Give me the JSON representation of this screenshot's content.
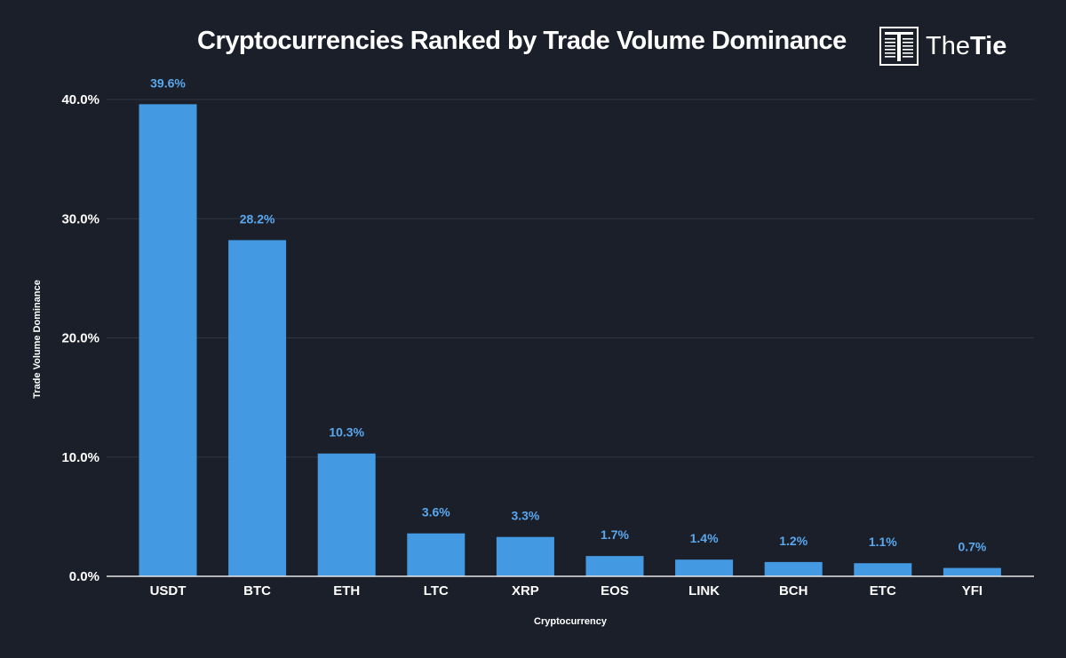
{
  "header": {
    "title": "Cryptocurrencies Ranked by Trade Volume Dominance",
    "brand_name_light": "The",
    "brand_name_bold": "Tie"
  },
  "colors": {
    "background": "#1b1f2a",
    "bar": "#4499e3",
    "data_label": "#5aa8ee",
    "gridline": "#2f3545",
    "axis_line": "#e6e6e6"
  },
  "chart_data": {
    "type": "bar",
    "title": "Cryptocurrencies Ranked by Trade Volume Dominance",
    "xlabel": "Cryptocurrency",
    "ylabel": "Trade Volume Dominance",
    "categories": [
      "USDT",
      "BTC",
      "ETH",
      "LTC",
      "XRP",
      "EOS",
      "LINK",
      "BCH",
      "ETC",
      "YFI"
    ],
    "values": [
      39.6,
      28.2,
      10.3,
      3.6,
      3.3,
      1.7,
      1.4,
      1.2,
      1.1,
      0.7
    ],
    "data_labels": [
      "39.6%",
      "28.2%",
      "10.3%",
      "3.6%",
      "3.3%",
      "1.7%",
      "1.4%",
      "1.2%",
      "1.1%",
      "0.7%"
    ],
    "y_ticks": [
      0,
      10,
      20,
      30,
      40
    ],
    "y_tick_labels": [
      "0.0%",
      "10.0%",
      "20.0%",
      "30.0%",
      "40.0%"
    ],
    "ylim": [
      0,
      40
    ],
    "grid": true,
    "legend": "none"
  }
}
